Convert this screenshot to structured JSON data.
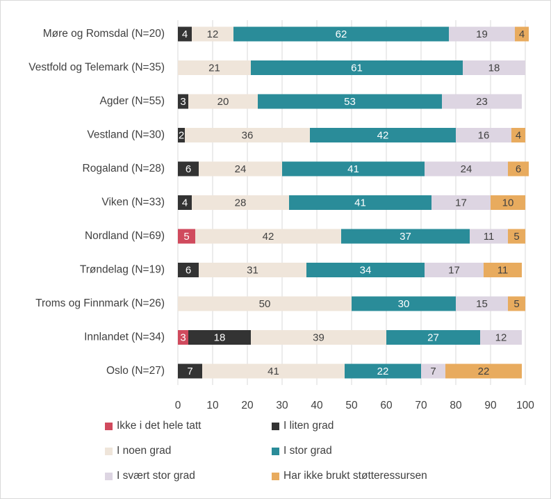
{
  "chart_data": {
    "type": "bar",
    "orientation": "horizontal",
    "stacked": true,
    "categories": [
      "Møre og Romsdal (N=20)",
      "Vestfold  og Telemark (N=35)",
      "Agder (N=55)",
      "Vestland (N=30)",
      "Rogaland (N=28)",
      "Viken (N=33)",
      "Nordland (N=69)",
      "Trøndelag (N=19)",
      "Troms og Finnmark (N=26)",
      "Innlandet (N=34)",
      "Oslo (N=27)"
    ],
    "series": [
      {
        "name": "Ikke i det hele tatt",
        "color": "#d04a5d",
        "label_color": "#ffffff",
        "values": [
          0,
          0,
          0,
          0,
          0,
          0,
          5,
          0,
          0,
          3,
          0
        ]
      },
      {
        "name": "I liten grad",
        "color": "#333333",
        "label_color": "#ffffff",
        "values": [
          4,
          0,
          3,
          2,
          6,
          4,
          0,
          6,
          0,
          18,
          7
        ]
      },
      {
        "name": "I noen grad",
        "color": "#efe5da",
        "label_color": "#404040",
        "values": [
          12,
          21,
          20,
          36,
          24,
          28,
          42,
          31,
          50,
          39,
          41
        ]
      },
      {
        "name": "I stor grad",
        "color": "#2a8c99",
        "label_color": "#ffffff",
        "values": [
          62,
          61,
          53,
          42,
          41,
          41,
          37,
          34,
          30,
          27,
          22
        ]
      },
      {
        "name": "I svært stor grad",
        "color": "#ddd5e2",
        "label_color": "#404040",
        "values": [
          19,
          18,
          23,
          16,
          24,
          17,
          11,
          17,
          15,
          12,
          7
        ]
      },
      {
        "name": "Har ikke brukt støtteressursen",
        "color": "#e8ab5e",
        "label_color": "#404040",
        "values": [
          4,
          0,
          0,
          4,
          6,
          10,
          5,
          11,
          5,
          0,
          22
        ]
      }
    ],
    "xlim": [
      0,
      100
    ],
    "xticks": [
      0,
      10,
      20,
      30,
      40,
      50,
      60,
      70,
      80,
      90,
      100
    ],
    "grid": true,
    "legend_position": "bottom",
    "title": "",
    "xlabel": "",
    "ylabel": ""
  }
}
